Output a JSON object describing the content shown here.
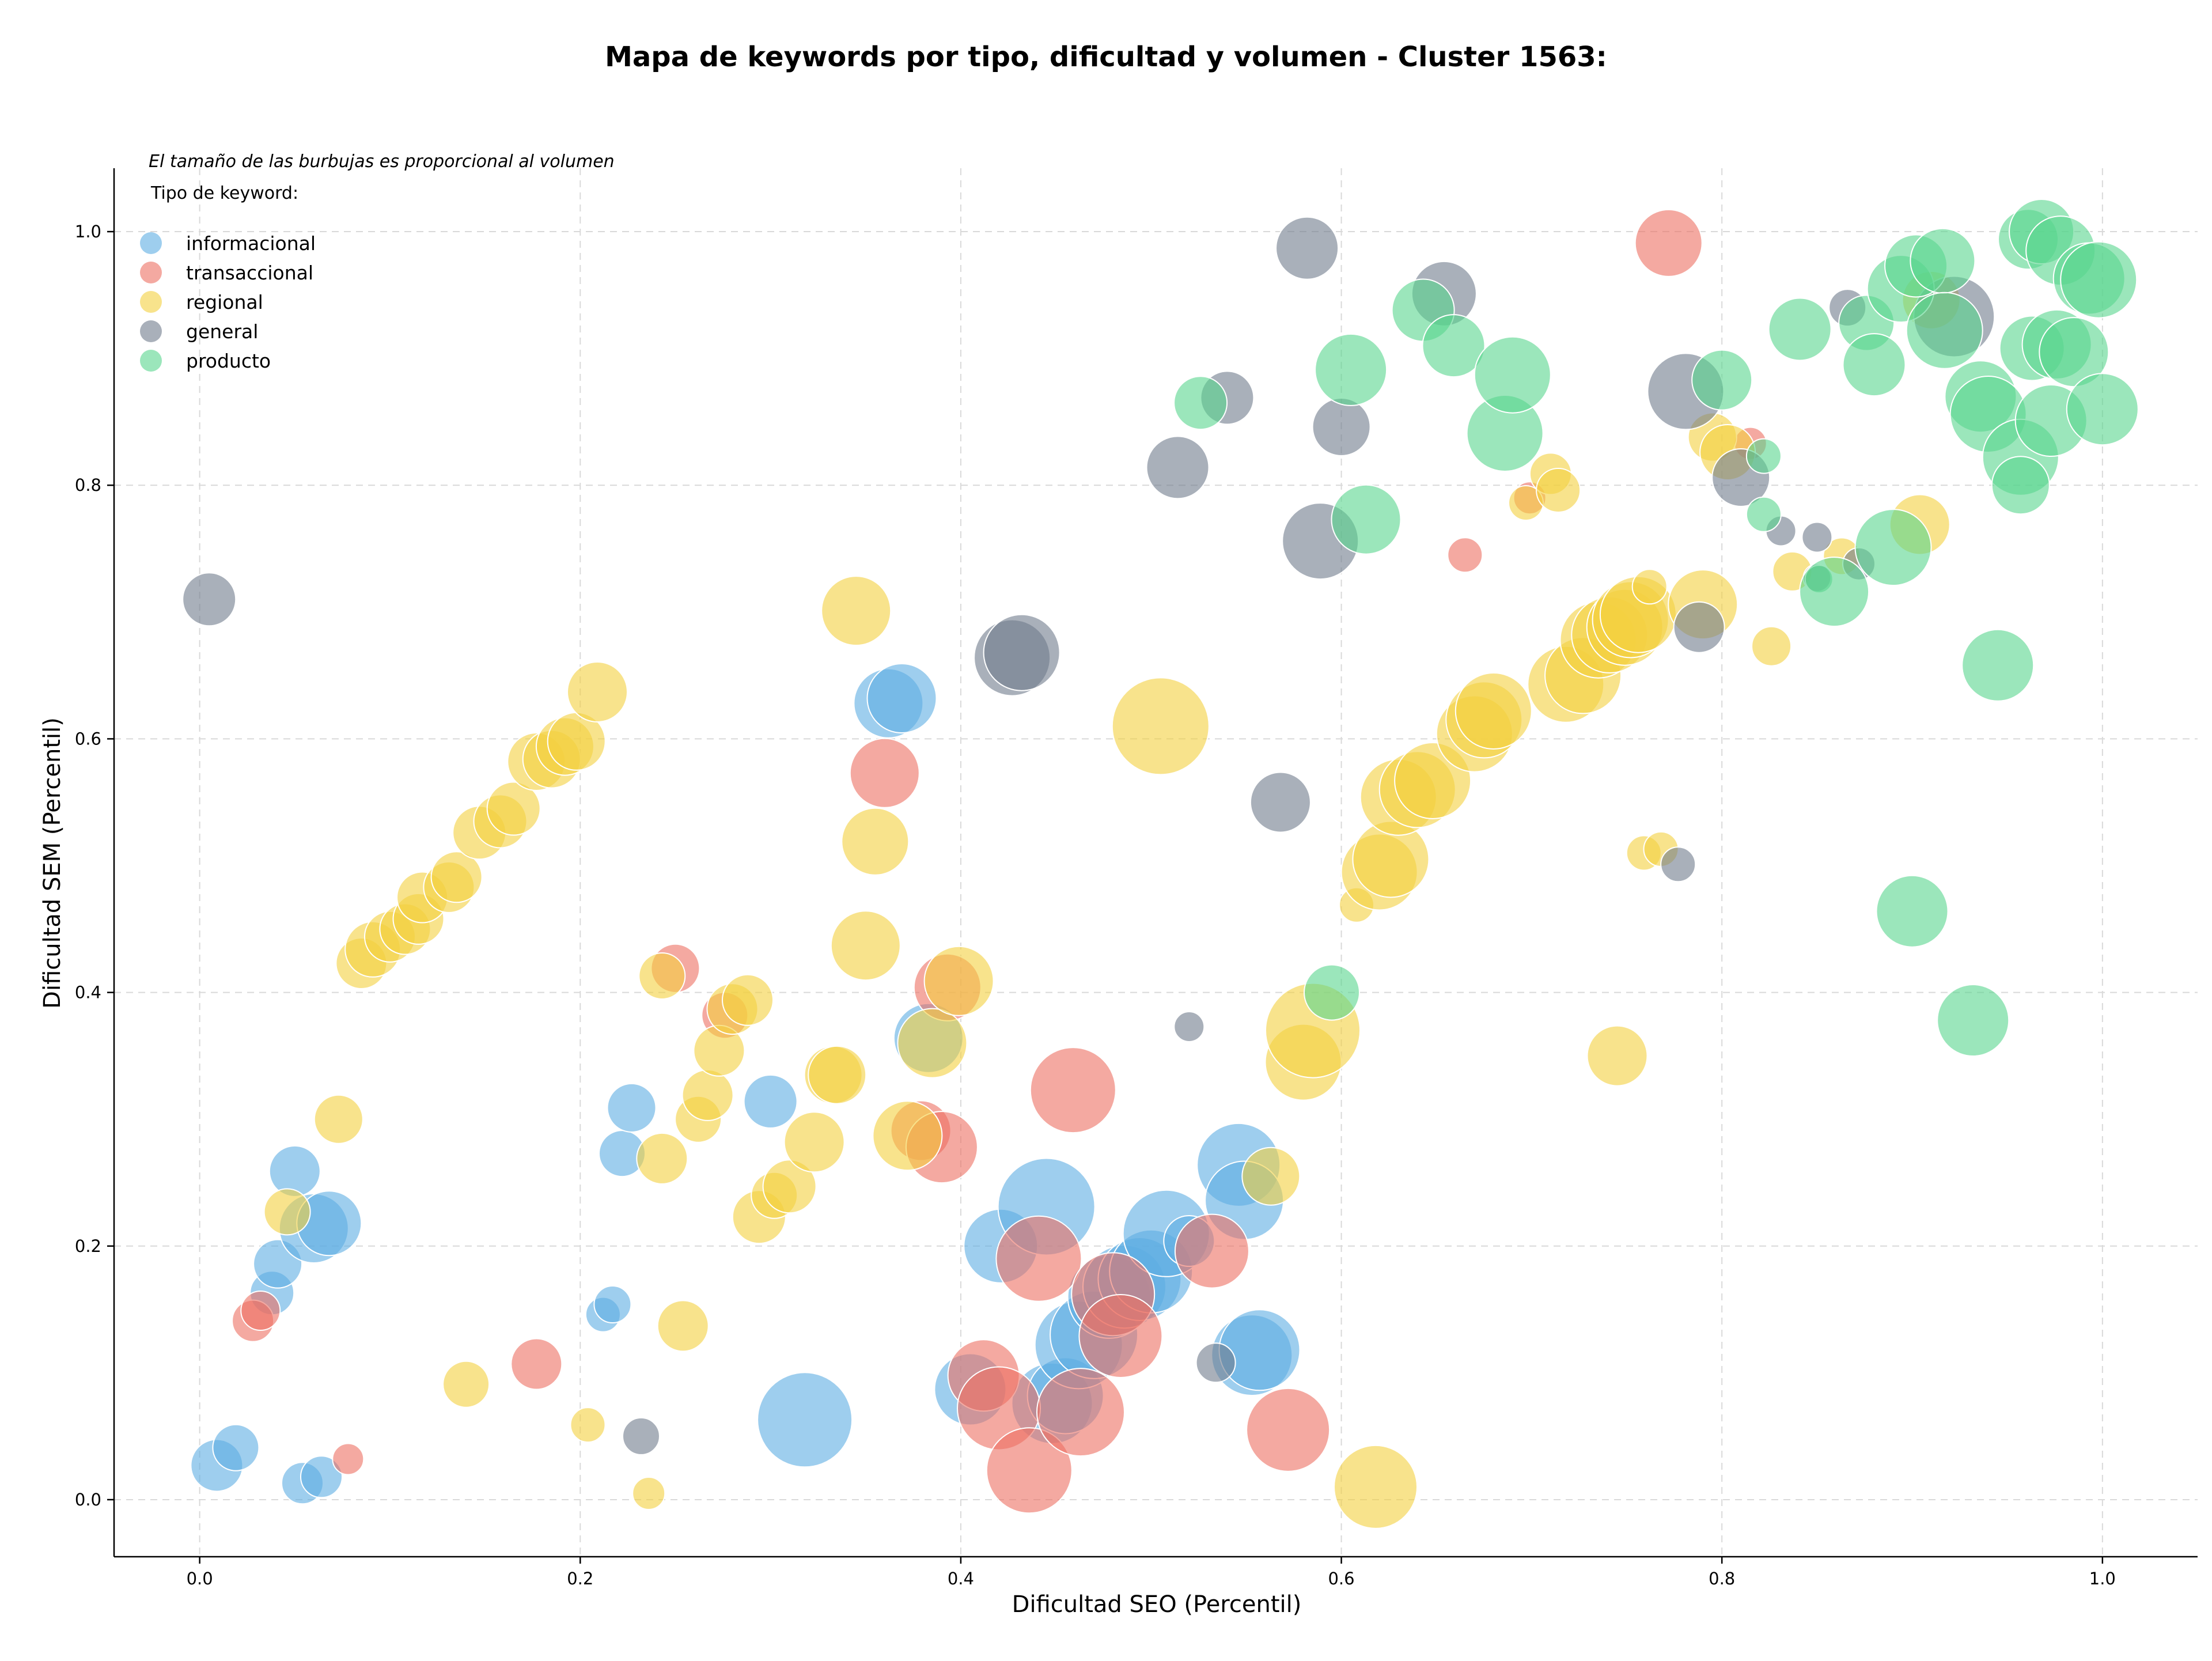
{
  "chart_data": {
    "type": "scatter",
    "title": "Mapa de keywords por tipo, dificultad y volumen - Cluster 1563:",
    "xlabel": "Dificultad SEO (Percentil)",
    "ylabel": "Dificultad SEM (Percentil)",
    "xlim": [
      -0.045,
      1.05
    ],
    "ylim": [
      -0.045,
      1.05
    ],
    "x_ticks": [
      0.0,
      0.2,
      0.4,
      0.6,
      0.8,
      1.0
    ],
    "y_ticks": [
      0.0,
      0.2,
      0.4,
      0.6,
      0.8,
      1.0
    ],
    "x_tick_labels": [
      "0.0",
      "0.2",
      "0.4",
      "0.6",
      "0.8",
      "1.0"
    ],
    "y_tick_labels": [
      "0.0",
      "0.2",
      "0.4",
      "0.6",
      "0.8",
      "1.0"
    ],
    "grid": true,
    "legend_placement": "upper-left",
    "note": "El tamaño de las burbujas es proporcional al volumen",
    "legend_title": "Tipo de keyword:",
    "size_meaning": "relative volume",
    "series": [
      {
        "name": "informacional",
        "color": "#5DADE2",
        "points": [
          [
            0.009,
            0.027,
            45
          ],
          [
            0.019,
            0.041,
            40
          ],
          [
            0.054,
            0.013,
            36
          ],
          [
            0.064,
            0.018,
            36
          ],
          [
            0.038,
            0.163,
            38
          ],
          [
            0.041,
            0.186,
            42
          ],
          [
            0.05,
            0.259,
            44
          ],
          [
            0.06,
            0.214,
            60
          ],
          [
            0.068,
            0.218,
            56
          ],
          [
            0.212,
            0.146,
            30
          ],
          [
            0.217,
            0.154,
            32
          ],
          [
            0.222,
            0.273,
            40
          ],
          [
            0.227,
            0.309,
            42
          ],
          [
            0.3,
            0.314,
            46
          ],
          [
            0.318,
            0.063,
            82
          ],
          [
            0.362,
            0.628,
            60
          ],
          [
            0.369,
            0.632,
            60
          ],
          [
            0.383,
            0.364,
            60
          ],
          [
            0.405,
            0.087,
            62
          ],
          [
            0.421,
            0.2,
            64
          ],
          [
            0.445,
            0.231,
            84
          ],
          [
            0.448,
            0.076,
            70
          ],
          [
            0.455,
            0.082,
            66
          ],
          [
            0.462,
            0.122,
            76
          ],
          [
            0.47,
            0.13,
            76
          ],
          [
            0.478,
            0.16,
            72
          ],
          [
            0.486,
            0.168,
            72
          ],
          [
            0.494,
            0.174,
            72
          ],
          [
            0.5,
            0.18,
            72
          ],
          [
            0.508,
            0.21,
            75
          ],
          [
            0.52,
            0.204,
            44
          ],
          [
            0.546,
            0.264,
            72
          ],
          [
            0.549,
            0.236,
            68
          ],
          [
            0.553,
            0.114,
            70
          ],
          [
            0.557,
            0.118,
            70
          ]
        ]
      },
      {
        "name": "transaccional",
        "color": "#EC7063",
        "points": [
          [
            0.028,
            0.141,
            36
          ],
          [
            0.032,
            0.149,
            34
          ],
          [
            0.078,
            0.032,
            27
          ],
          [
            0.177,
            0.107,
            44
          ],
          [
            0.25,
            0.419,
            42
          ],
          [
            0.276,
            0.382,
            40
          ],
          [
            0.36,
            0.573,
            60
          ],
          [
            0.379,
            0.291,
            52
          ],
          [
            0.39,
            0.278,
            62
          ],
          [
            0.393,
            0.404,
            58
          ],
          [
            0.412,
            0.098,
            62
          ],
          [
            0.42,
            0.072,
            72
          ],
          [
            0.436,
            0.023,
            74
          ],
          [
            0.441,
            0.19,
            74
          ],
          [
            0.459,
            0.323,
            74
          ],
          [
            0.463,
            0.069,
            76
          ],
          [
            0.48,
            0.162,
            72
          ],
          [
            0.484,
            0.129,
            72
          ],
          [
            0.532,
            0.196,
            64
          ],
          [
            0.572,
            0.055,
            72
          ],
          [
            0.699,
            0.79,
            28
          ],
          [
            0.665,
            0.745,
            30
          ],
          [
            0.772,
            0.991,
            58
          ],
          [
            0.815,
            0.833,
            28
          ]
        ]
      },
      {
        "name": "regional",
        "color": "#F4D03F",
        "points": [
          [
            0.046,
            0.227,
            40
          ],
          [
            0.073,
            0.3,
            42
          ],
          [
            0.14,
            0.091,
            40
          ],
          [
            0.204,
            0.059,
            30
          ],
          [
            0.236,
            0.005,
            28
          ],
          [
            0.243,
            0.269,
            44
          ],
          [
            0.254,
            0.137,
            44
          ],
          [
            0.243,
            0.413,
            40
          ],
          [
            0.262,
            0.3,
            40
          ],
          [
            0.267,
            0.319,
            44
          ],
          [
            0.273,
            0.354,
            44
          ],
          [
            0.28,
            0.387,
            44
          ],
          [
            0.288,
            0.394,
            44
          ],
          [
            0.294,
            0.223,
            46
          ],
          [
            0.302,
            0.24,
            40
          ],
          [
            0.31,
            0.247,
            46
          ],
          [
            0.323,
            0.282,
            52
          ],
          [
            0.333,
            0.335,
            50
          ],
          [
            0.335,
            0.335,
            50
          ],
          [
            0.345,
            0.701,
            60
          ],
          [
            0.35,
            0.437,
            60
          ],
          [
            0.355,
            0.519,
            58
          ],
          [
            0.372,
            0.287,
            60
          ],
          [
            0.385,
            0.36,
            60
          ],
          [
            0.399,
            0.409,
            60
          ],
          [
            0.505,
            0.61,
            84
          ],
          [
            0.563,
            0.255,
            50
          ],
          [
            0.58,
            0.345,
            66
          ],
          [
            0.585,
            0.37,
            82
          ],
          [
            0.608,
            0.469,
            30
          ],
          [
            0.618,
            0.01,
            72
          ],
          [
            0.62,
            0.495,
            66
          ],
          [
            0.626,
            0.505,
            66
          ],
          [
            0.63,
            0.554,
            66
          ],
          [
            0.64,
            0.56,
            66
          ],
          [
            0.648,
            0.567,
            66
          ],
          [
            0.67,
            0.604,
            66
          ],
          [
            0.675,
            0.615,
            66
          ],
          [
            0.68,
            0.622,
            66
          ],
          [
            0.697,
            0.786,
            30
          ],
          [
            0.71,
            0.809,
            36
          ],
          [
            0.714,
            0.796,
            38
          ],
          [
            0.718,
            0.643,
            66
          ],
          [
            0.727,
            0.65,
            66
          ],
          [
            0.735,
            0.678,
            66
          ],
          [
            0.741,
            0.682,
            66
          ],
          [
            0.749,
            0.688,
            66
          ],
          [
            0.752,
            0.694,
            66
          ],
          [
            0.756,
            0.698,
            66
          ],
          [
            0.745,
            0.35,
            52
          ],
          [
            0.759,
            0.51,
            30
          ],
          [
            0.768,
            0.513,
            30
          ],
          [
            0.762,
            0.72,
            30
          ],
          [
            0.79,
            0.706,
            60
          ],
          [
            0.795,
            0.838,
            42
          ],
          [
            0.803,
            0.826,
            48
          ],
          [
            0.826,
            0.673,
            34
          ],
          [
            0.837,
            0.732,
            34
          ],
          [
            0.863,
            0.744,
            32
          ],
          [
            0.904,
            0.769,
            52
          ],
          [
            0.91,
            0.946,
            50
          ],
          [
            0.085,
            0.423,
            44
          ],
          [
            0.091,
            0.434,
            48
          ],
          [
            0.1,
            0.444,
            44
          ],
          [
            0.108,
            0.45,
            44
          ],
          [
            0.115,
            0.458,
            44
          ],
          [
            0.117,
            0.475,
            44
          ],
          [
            0.131,
            0.483,
            44
          ],
          [
            0.135,
            0.491,
            44
          ],
          [
            0.147,
            0.526,
            46
          ],
          [
            0.158,
            0.535,
            46
          ],
          [
            0.165,
            0.545,
            46
          ],
          [
            0.177,
            0.582,
            50
          ],
          [
            0.185,
            0.584,
            50
          ],
          [
            0.192,
            0.594,
            50
          ],
          [
            0.198,
            0.598,
            50
          ],
          [
            0.209,
            0.637,
            52
          ]
        ]
      },
      {
        "name": "general",
        "color": "#707B8C",
        "points": [
          [
            0.005,
            0.71,
            46
          ],
          [
            0.232,
            0.05,
            32
          ],
          [
            0.427,
            0.664,
            66
          ],
          [
            0.432,
            0.668,
            66
          ],
          [
            0.514,
            0.814,
            54
          ],
          [
            0.52,
            0.373,
            26
          ],
          [
            0.534,
            0.108,
            34
          ],
          [
            0.54,
            0.869,
            46
          ],
          [
            0.568,
            0.55,
            52
          ],
          [
            0.582,
            0.987,
            54
          ],
          [
            0.589,
            0.756,
            66
          ],
          [
            0.6,
            0.846,
            50
          ],
          [
            0.654,
            0.951,
            56
          ],
          [
            0.777,
            0.501,
            30
          ],
          [
            0.781,
            0.874,
            66
          ],
          [
            0.788,
            0.688,
            44
          ],
          [
            0.81,
            0.806,
            50
          ],
          [
            0.831,
            0.764,
            26
          ],
          [
            0.85,
            0.759,
            26
          ],
          [
            0.85,
            0.727,
            24
          ],
          [
            0.866,
            0.94,
            32
          ],
          [
            0.872,
            0.738,
            28
          ],
          [
            0.922,
            0.933,
            70
          ]
        ]
      },
      {
        "name": "producto",
        "color": "#58D68D",
        "points": [
          [
            0.526,
            0.865,
            46
          ],
          [
            0.595,
            0.4,
            48
          ],
          [
            0.605,
            0.891,
            62
          ],
          [
            0.613,
            0.773,
            60
          ],
          [
            0.643,
            0.938,
            54
          ],
          [
            0.659,
            0.91,
            54
          ],
          [
            0.686,
            0.841,
            66
          ],
          [
            0.69,
            0.887,
            66
          ],
          [
            0.8,
            0.883,
            52
          ],
          [
            0.822,
            0.777,
            30
          ],
          [
            0.822,
            0.823,
            30
          ],
          [
            0.841,
            0.923,
            54
          ],
          [
            0.851,
            0.726,
            24
          ],
          [
            0.859,
            0.716,
            60
          ],
          [
            0.876,
            0.928,
            48
          ],
          [
            0.88,
            0.895,
            54
          ],
          [
            0.89,
            0.751,
            66
          ],
          [
            0.894,
            0.955,
            58
          ],
          [
            0.9,
            0.464,
            62
          ],
          [
            0.902,
            0.973,
            54
          ],
          [
            0.916,
            0.977,
            56
          ],
          [
            0.917,
            0.922,
            66
          ],
          [
            0.932,
            0.378,
            62
          ],
          [
            0.936,
            0.87,
            62
          ],
          [
            0.94,
            0.856,
            66
          ],
          [
            0.945,
            0.658,
            62
          ],
          [
            0.957,
            0.822,
            66
          ],
          [
            0.957,
            0.8,
            50
          ],
          [
            0.961,
            0.994,
            52
          ],
          [
            0.963,
            0.908,
            56
          ],
          [
            0.968,
            1.0,
            56
          ],
          [
            0.973,
            0.851,
            62
          ],
          [
            0.976,
            0.911,
            60
          ],
          [
            0.978,
            0.985,
            60
          ],
          [
            0.985,
            0.905,
            60
          ],
          [
            0.993,
            0.963,
            62
          ],
          [
            0.998,
            0.962,
            66
          ],
          [
            1.0,
            0.86,
            62
          ]
        ]
      }
    ]
  }
}
